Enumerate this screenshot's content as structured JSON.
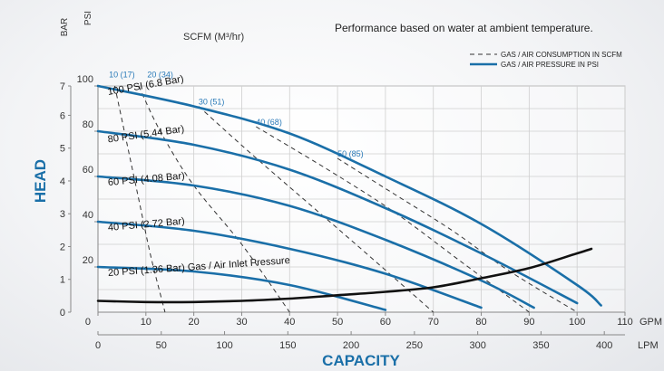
{
  "note": "Performance based on water at ambient temperature.",
  "chart_data": {
    "type": "line",
    "ylabel": "HEAD",
    "xlabel": "CAPACITY",
    "x_unit_gpm": "GPM",
    "x_unit_lpm": "LPM",
    "y_unit_bar": "BAR",
    "y_unit_psi": "PSI",
    "xlim_gpm": [
      0,
      110
    ],
    "ylim_psi": [
      0,
      100
    ],
    "ylim_bar": [
      0,
      7
    ],
    "gpm_ticks": [
      "0",
      "10",
      "20",
      "30",
      "40",
      "50",
      "60",
      "70",
      "80",
      "90",
      "100",
      "110"
    ],
    "lpm_ticks": [
      "0",
      "50",
      "100",
      "150",
      "200",
      "250",
      "300",
      "350",
      "400"
    ],
    "lpm_tick_values": [
      0,
      50,
      100,
      150,
      200,
      250,
      300,
      350,
      400
    ],
    "psi_ticks": [
      "20",
      "40",
      "60",
      "80",
      "100"
    ],
    "psi_tick_values": [
      20,
      40,
      60,
      80,
      100
    ],
    "bar_ticks": [
      "0",
      "1",
      "2",
      "3",
      "4",
      "5",
      "6",
      "7"
    ],
    "grid": true,
    "legend": {
      "position": "top-right",
      "items": [
        {
          "label": "GAS / AIR CONSUMPTION IN SCFM",
          "style": "dashed",
          "color": "#333333"
        },
        {
          "label": "GAS / AIR PRESSURE IN PSI",
          "style": "solid",
          "color": "#1a6fa8"
        }
      ]
    },
    "colors": {
      "pressure": "#1a6fa8",
      "consumption": "#333333",
      "inlet": "#111111",
      "scfm_label": "#2a7ab8"
    },
    "scfm_title": "SCFM (M³/hr)",
    "pressure_series": [
      {
        "name": "100 PSI (6.8 Bar)",
        "x": [
          0,
          20,
          40,
          60,
          80,
          100,
          105
        ],
        "y": [
          100,
          91,
          79,
          60,
          39,
          12,
          3
        ]
      },
      {
        "name": "80 PSI (5.44 Bar)",
        "x": [
          0,
          20,
          40,
          60,
          80,
          100
        ],
        "y": [
          80,
          74,
          63,
          46,
          26,
          4
        ]
      },
      {
        "name": "60 PSI (4.08 Bar)",
        "x": [
          0,
          20,
          40,
          60,
          80,
          91
        ],
        "y": [
          60,
          56,
          47,
          32,
          14,
          2
        ]
      },
      {
        "name": "40 PSI (2.72 Bar)",
        "x": [
          0,
          20,
          40,
          60,
          80
        ],
        "y": [
          40,
          36,
          28,
          17,
          2
        ]
      },
      {
        "name": "20 PSI (1.36 Bar) Gas / Air Inlet Pressure",
        "x": [
          0,
          20,
          40,
          60
        ],
        "y": [
          20,
          18,
          12,
          1
        ]
      }
    ],
    "inlet_curve": {
      "x": [
        0,
        10,
        20,
        30,
        40,
        50,
        60,
        70,
        80,
        90,
        100,
        103
      ],
      "y": [
        5,
        4.5,
        4.5,
        5,
        6,
        7.5,
        9,
        11,
        15,
        19.5,
        26,
        28
      ]
    },
    "consumption_series": [
      {
        "name": "10 (17)",
        "x": [
          3.5,
          6,
          8.5,
          11,
          14
        ],
        "y": [
          100,
          75,
          50,
          25,
          0
        ]
      },
      {
        "name": "20 (34)",
        "x": [
          8.5,
          13,
          20,
          30,
          40
        ],
        "y": [
          100,
          80,
          56,
          30,
          0
        ]
      },
      {
        "name": "30 (51)",
        "x": [
          21,
          32,
          44,
          56,
          70
        ],
        "y": [
          91,
          70,
          48,
          26,
          0
        ]
      },
      {
        "name": "40 (68)",
        "x": [
          33,
          48,
          62,
          76,
          90
        ],
        "y": [
          82,
          63,
          44,
          22,
          0
        ]
      },
      {
        "name": "50 (85)",
        "x": [
          50,
          62,
          74,
          86,
          100
        ],
        "y": [
          68,
          52,
          36,
          18,
          0
        ]
      }
    ]
  }
}
